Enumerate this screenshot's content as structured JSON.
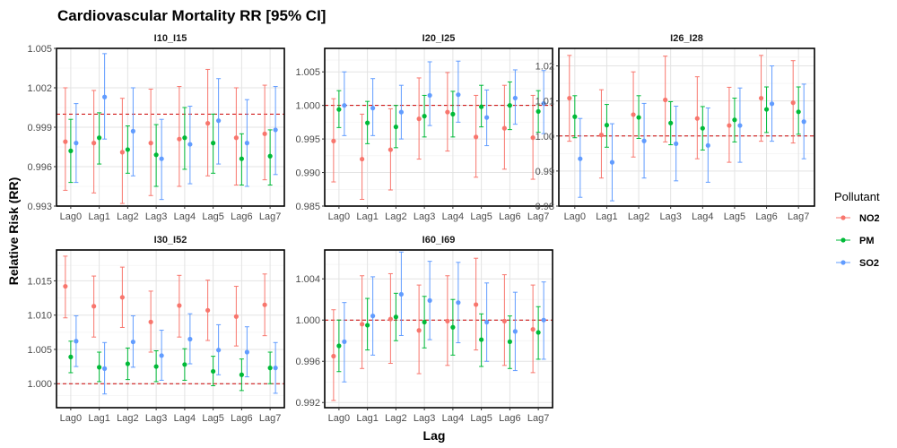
{
  "chart_data": {
    "type": "scatter",
    "title": "Cardiovascular Mortality RR [95% CI]",
    "xlabel": "Lag",
    "ylabel": "Relative Risk (RR)",
    "categories": [
      "Lag0",
      "Lag1",
      "Lag2",
      "Lag3",
      "Lag4",
      "Lag5",
      "Lag6",
      "Lag7"
    ],
    "reference_line": 1.0,
    "legend": {
      "title": "Pollutant",
      "position": "right",
      "items": [
        {
          "name": "NO2",
          "color": "#F8766D"
        },
        {
          "name": "PM",
          "color": "#00BA38"
        },
        {
          "name": "SO2",
          "color": "#619CFF"
        }
      ]
    },
    "grid": true,
    "panels": [
      {
        "title": "I10_I15",
        "ylim": [
          0.993,
          1.005
        ],
        "yticks": [
          0.993,
          0.996,
          0.999,
          1.002,
          1.005
        ],
        "ytick_labels": [
          "0.993",
          "0.996",
          "0.999",
          "1.002",
          "1.005"
        ],
        "series": [
          {
            "name": "NO2",
            "color": "#F8766D",
            "estimate": [
              0.9979,
              0.9978,
              0.9971,
              0.9978,
              0.9981,
              0.9993,
              0.9982,
              0.9985
            ],
            "lower": [
              0.9942,
              0.994,
              0.9932,
              0.9938,
              0.9945,
              0.9953,
              0.9946,
              0.995
            ],
            "upper": [
              1.002,
              1.0018,
              1.0012,
              1.0019,
              1.0021,
              1.0034,
              1.002,
              1.0022
            ]
          },
          {
            "name": "PM",
            "color": "#00BA38",
            "estimate": [
              0.9972,
              0.9982,
              0.9973,
              0.9969,
              0.9982,
              0.9978,
              0.9966,
              0.9968
            ],
            "lower": [
              0.9948,
              0.9962,
              0.9955,
              0.9945,
              0.9958,
              0.9955,
              0.9946,
              0.9946
            ],
            "upper": [
              0.9996,
              1.0001,
              0.9991,
              0.9992,
              1.0005,
              1.0,
              0.9985,
              0.9988
            ]
          },
          {
            "name": "SO2",
            "color": "#619CFF",
            "estimate": [
              0.9978,
              1.0013,
              0.9987,
              0.9966,
              0.9977,
              0.9995,
              0.9978,
              0.9988
            ],
            "lower": [
              0.9948,
              0.9981,
              0.9953,
              0.9935,
              0.9947,
              0.9962,
              0.9945,
              0.9954
            ],
            "upper": [
              1.0008,
              1.0046,
              1.002,
              0.9996,
              1.0006,
              1.0027,
              1.0011,
              1.0021
            ]
          }
        ]
      },
      {
        "title": "I20_I25",
        "ylim": [
          0.985,
          1.0085
        ],
        "yticks": [
          0.985,
          0.99,
          0.995,
          1.0,
          1.005
        ],
        "ytick_labels": [
          "0.985",
          "0.990",
          "0.995",
          "1.000",
          "1.005"
        ],
        "series": [
          {
            "name": "NO2",
            "color": "#F8766D",
            "estimate": [
              0.9947,
              0.992,
              0.9934,
              0.998,
              0.999,
              0.9953,
              0.9966,
              0.9952
            ],
            "lower": [
              0.9886,
              0.986,
              0.9874,
              0.992,
              0.9932,
              0.9893,
              0.9905,
              0.989
            ],
            "upper": [
              1.001,
              0.9987,
              0.9995,
              1.0041,
              1.0049,
              1.0015,
              1.003,
              1.0015
            ]
          },
          {
            "name": "PM",
            "color": "#00BA38",
            "estimate": [
              0.9994,
              0.9974,
              0.9968,
              0.9984,
              0.9987,
              0.9998,
              1.0,
              0.9991
            ],
            "lower": [
              0.9967,
              0.9943,
              0.9937,
              0.9953,
              0.9953,
              0.9968,
              0.9964,
              0.996
            ],
            "upper": [
              1.0022,
              1.0006,
              1.0,
              1.0015,
              1.0021,
              1.003,
              1.0035,
              1.0022
            ]
          },
          {
            "name": "SO2",
            "color": "#619CFF",
            "estimate": [
              1.0,
              0.9996,
              0.999,
              1.0015,
              1.0016,
              0.9982,
              1.0011,
              1.0003
            ],
            "lower": [
              0.9955,
              0.9955,
              0.995,
              0.997,
              0.9975,
              0.994,
              0.9972,
              0.9958
            ],
            "upper": [
              1.005,
              1.004,
              1.003,
              1.0065,
              1.0066,
              1.0023,
              1.0053,
              1.0052
            ]
          }
        ]
      },
      {
        "title": "I26_I28",
        "ylim": [
          0.98,
          1.025
        ],
        "yticks": [
          0.98,
          0.99,
          1.0,
          1.01,
          1.02
        ],
        "ytick_labels": [
          "0.98",
          "0.99",
          "1.00",
          "1.01",
          "1.02"
        ],
        "series": [
          {
            "name": "NO2",
            "color": "#F8766D",
            "estimate": [
              1.0108,
              1.0003,
              1.0061,
              1.0103,
              1.005,
              1.003,
              1.0108,
              1.0095
            ],
            "lower": [
              0.9985,
              0.988,
              0.994,
              0.9983,
              0.9935,
              0.9925,
              0.9985,
              0.998
            ],
            "upper": [
              1.023,
              1.0132,
              1.0183,
              1.0228,
              1.0169,
              1.0139,
              1.023,
              1.0215
            ]
          },
          {
            "name": "PM",
            "color": "#00BA38",
            "estimate": [
              1.0055,
              1.0031,
              1.0053,
              1.0037,
              1.0022,
              1.0046,
              1.0076,
              1.0069
            ],
            "lower": [
              0.9995,
              0.9968,
              0.9993,
              0.9975,
              0.996,
              0.9983,
              1.001,
              1.0005
            ],
            "upper": [
              1.0115,
              1.009,
              1.0115,
              1.0098,
              1.0084,
              1.0108,
              1.014,
              1.014
            ]
          },
          {
            "name": "SO2",
            "color": "#619CFF",
            "estimate": [
              0.9935,
              0.9925,
              0.9986,
              0.9978,
              0.9973,
              1.003,
              1.0092,
              1.0041
            ],
            "lower": [
              0.9825,
              0.9815,
              0.988,
              0.9872,
              0.9868,
              0.9925,
              0.9985,
              0.9935
            ],
            "upper": [
              1.005,
              1.0035,
              1.0093,
              1.0085,
              1.008,
              1.0137,
              1.02,
              1.0148
            ]
          }
        ]
      },
      {
        "title": "I30_I52",
        "ylim": [
          0.9965,
          1.0195
        ],
        "yticks": [
          1.0,
          1.005,
          1.01,
          1.015
        ],
        "ytick_labels": [
          "1.000",
          "1.005",
          "1.010",
          "1.015"
        ],
        "series": [
          {
            "name": "NO2",
            "color": "#F8766D",
            "estimate": [
              1.0142,
              1.0113,
              1.0126,
              1.009,
              1.0114,
              1.0107,
              1.0098,
              1.0115
            ],
            "lower": [
              1.0096,
              1.0068,
              1.0082,
              1.0046,
              1.0068,
              1.0063,
              1.0055,
              1.007
            ],
            "upper": [
              1.0186,
              1.0157,
              1.017,
              1.0135,
              1.0158,
              1.0151,
              1.0142,
              1.016
            ]
          },
          {
            "name": "PM",
            "color": "#00BA38",
            "estimate": [
              1.0039,
              1.0024,
              1.0029,
              1.0025,
              1.0028,
              1.0018,
              1.0013,
              1.0023
            ],
            "lower": [
              1.0016,
              1.0003,
              1.0006,
              1.0003,
              1.0005,
              0.9997,
              0.999,
              1.0
            ],
            "upper": [
              1.0062,
              1.0046,
              1.0052,
              1.0048,
              1.0051,
              1.004,
              1.0036,
              1.0046
            ]
          },
          {
            "name": "SO2",
            "color": "#619CFF",
            "estimate": [
              1.0062,
              1.0022,
              1.0061,
              1.0041,
              1.0065,
              1.0049,
              1.0046,
              1.0023
            ],
            "lower": [
              1.0025,
              0.9985,
              1.0024,
              1.0005,
              1.0029,
              1.0013,
              1.001,
              0.9986
            ],
            "upper": [
              1.0099,
              1.006,
              1.0099,
              1.0078,
              1.0102,
              1.0086,
              1.0083,
              1.006
            ]
          }
        ]
      },
      {
        "title": "I60_I69",
        "ylim": [
          0.9915,
          1.0068
        ],
        "yticks": [
          0.992,
          0.996,
          1.0,
          1.004
        ],
        "ytick_labels": [
          "0.992",
          "0.996",
          "1.000",
          "1.004"
        ],
        "series": [
          {
            "name": "NO2",
            "color": "#F8766D",
            "estimate": [
              0.9965,
              0.9996,
              1.0001,
              0.999,
              0.9999,
              1.0015,
              0.9999,
              0.9991
            ],
            "lower": [
              0.9922,
              0.9953,
              0.9958,
              0.9948,
              0.9956,
              0.9971,
              0.9956,
              0.9949
            ],
            "upper": [
              1.001,
              1.0043,
              1.0045,
              1.0034,
              1.0043,
              1.006,
              1.0044,
              1.0034
            ]
          },
          {
            "name": "PM",
            "color": "#00BA38",
            "estimate": [
              0.9975,
              0.9995,
              1.0003,
              0.9998,
              0.9993,
              0.9981,
              0.9979,
              0.9988
            ],
            "lower": [
              0.995,
              0.9971,
              0.998,
              0.9973,
              0.9966,
              0.9955,
              0.9953,
              0.9962
            ],
            "upper": [
              1.0,
              1.0021,
              1.0026,
              1.0023,
              1.002,
              1.0006,
              1.0004,
              1.0013
            ]
          },
          {
            "name": "SO2",
            "color": "#619CFF",
            "estimate": [
              0.9979,
              1.0004,
              1.0025,
              1.0019,
              1.0017,
              0.9998,
              0.9989,
              1.0
            ],
            "lower": [
              0.994,
              0.9966,
              0.9985,
              0.9981,
              0.9978,
              0.996,
              0.9951,
              0.9962
            ],
            "upper": [
              1.0017,
              1.0042,
              1.0066,
              1.0057,
              1.0056,
              1.0036,
              1.0027,
              1.0037
            ]
          }
        ]
      }
    ]
  }
}
